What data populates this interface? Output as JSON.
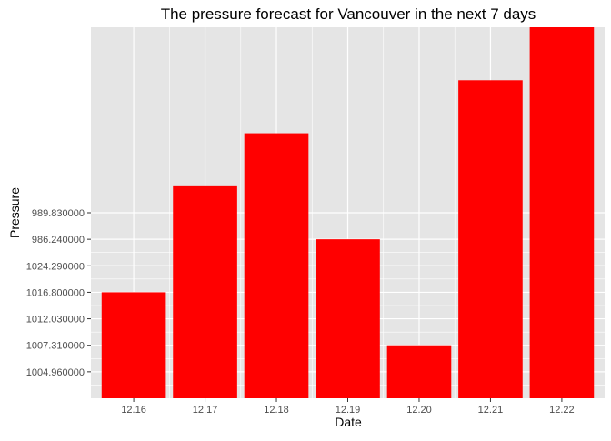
{
  "chart_data": {
    "type": "bar",
    "title": "The pressure forecast for Vancouver in the next 7 days",
    "xlabel": "Date",
    "ylabel": "Pressure",
    "categories": [
      "12.16",
      "12.17",
      "12.18",
      "12.19",
      "12.20",
      "12.21",
      "12.22"
    ],
    "series": [
      {
        "values": [
          4,
          8,
          10,
          6,
          2,
          12,
          14
        ]
      }
    ],
    "y_ticks": [
      {
        "value": 1,
        "label": "1004.960000"
      },
      {
        "value": 2,
        "label": "1007.310000"
      },
      {
        "value": 3,
        "label": "1012.030000"
      },
      {
        "value": 4,
        "label": "1016.800000"
      },
      {
        "value": 5,
        "label": "1024.290000"
      },
      {
        "value": 6,
        "label": "986.240000"
      },
      {
        "value": 7,
        "label": "989.830000"
      }
    ],
    "ylim": [
      0,
      14
    ],
    "grid": true,
    "bar_color": "#FF0000",
    "panel_color": "#E5E5E5",
    "grid_color": "#FFFFFF"
  }
}
